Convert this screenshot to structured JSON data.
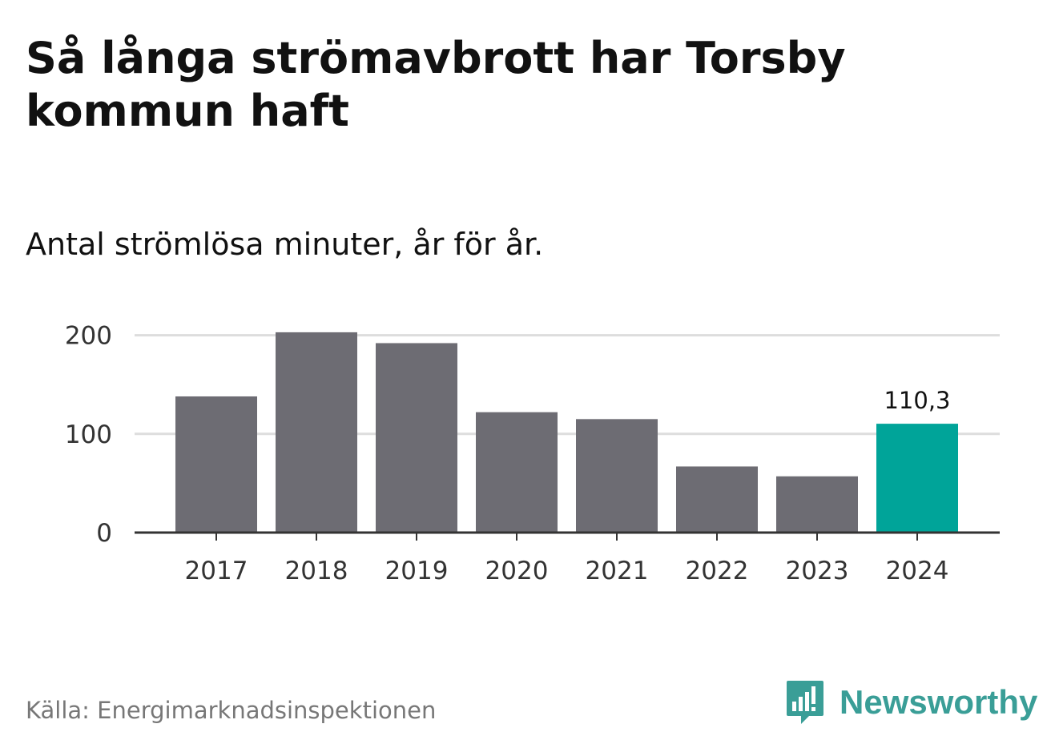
{
  "header": {
    "title": "Så långa strömavbrott har Torsby kommun haft",
    "subtitle": "Antal strömlösa minuter, år för år."
  },
  "footer": {
    "source": "Källa: Energimarknadsinspektionen",
    "brand": "Newsworthy"
  },
  "colors": {
    "bar": "#6d6c73",
    "highlight": "#00a499",
    "grid": "#dddddd",
    "axis": "#333333",
    "brand": "#3a9e97"
  },
  "icons": {
    "logo": "newsworthy-logo-icon"
  },
  "chart_data": {
    "type": "bar",
    "categories": [
      "2017",
      "2018",
      "2019",
      "2020",
      "2021",
      "2022",
      "2023",
      "2024"
    ],
    "values": [
      138,
      203,
      192,
      122,
      115,
      67,
      57,
      110.3
    ],
    "highlight_index": 7,
    "data_labels": [
      {
        "index": 7,
        "text": "110,3"
      }
    ],
    "yticks": [
      0,
      100,
      200
    ],
    "ylim": [
      0,
      200
    ],
    "grid": true,
    "xlabel": "",
    "ylabel": ""
  }
}
